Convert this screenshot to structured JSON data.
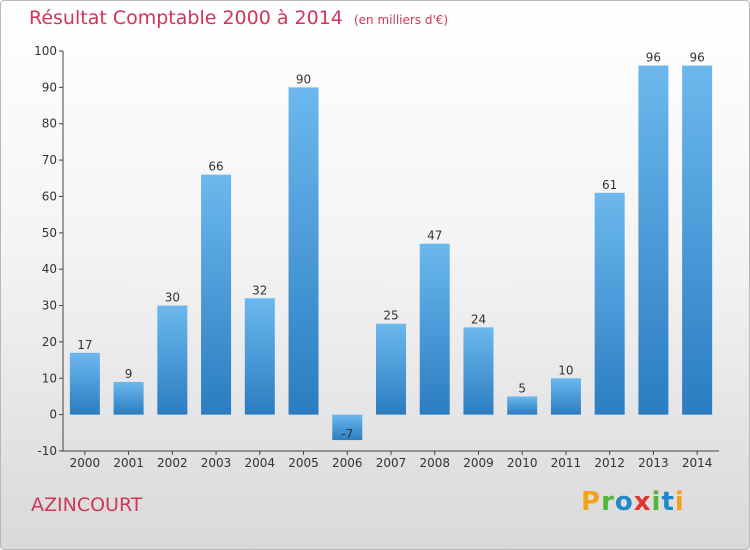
{
  "header": {
    "title": "Résultat Comptable 2000 à 2014",
    "subtitle": "(en milliers d'€)"
  },
  "commune": "AZINCOURT",
  "logo": {
    "letters": [
      "P",
      "r",
      "o",
      "x",
      "i",
      "t",
      "i"
    ],
    "colors": [
      "#f2a31b",
      "#53b53a",
      "#1e88c9",
      "#e2342f",
      "#53b53a",
      "#1e88c9",
      "#f2a31b"
    ]
  },
  "colors": {
    "bar_top": "#6cb8ee",
    "bar_bottom": "#2b7dc1",
    "text_accent": "#d0355e"
  },
  "chart_data": {
    "type": "bar",
    "title": "Résultat Comptable 2000 à 2014",
    "subtitle": "(en milliers d'€)",
    "categories": [
      "2000",
      "2001",
      "2002",
      "2003",
      "2004",
      "2005",
      "2006",
      "2007",
      "2008",
      "2009",
      "2010",
      "2011",
      "2012",
      "2013",
      "2014"
    ],
    "values": [
      17,
      9,
      30,
      66,
      32,
      90,
      -7,
      25,
      47,
      24,
      5,
      10,
      61,
      96,
      96
    ],
    "ylim": [
      -10,
      100
    ],
    "yticks": [
      -10,
      0,
      10,
      20,
      30,
      40,
      50,
      60,
      70,
      80,
      90,
      100
    ],
    "grid": false,
    "legend": "none"
  }
}
